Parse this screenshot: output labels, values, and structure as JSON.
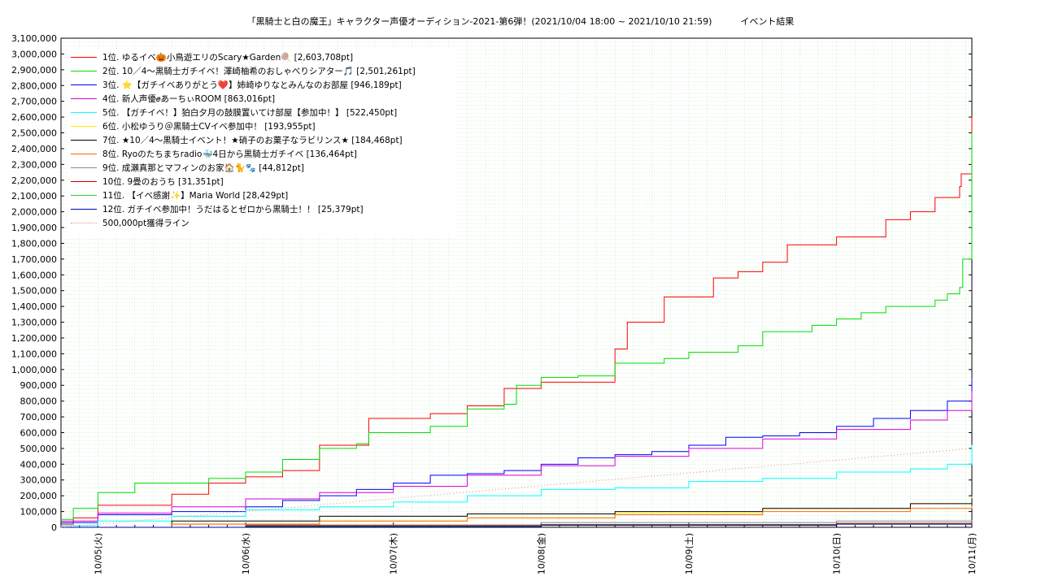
{
  "chart_data": {
    "type": "line",
    "title": "「黒騎士と白の魔王」キャラクター声優オーディション-2021-第6弾！(2021/10/04 18:00 ~ 2021/10/10 21:59)          イベント結果",
    "xlabel": "",
    "ylabel": "",
    "x_range": [
      "2021/10/04 18:00",
      "2021/10/10 21:59"
    ],
    "ylim": [
      0,
      3100000
    ],
    "grid": true,
    "legend_position": "top-left",
    "y_ticks": [
      "0",
      "100,000",
      "200,000",
      "300,000",
      "400,000",
      "500,000",
      "600,000",
      "700,000",
      "800,000",
      "900,000",
      "1,000,000",
      "1,100,000",
      "1,200,000",
      "1,300,000",
      "1,400,000",
      "1,500,000",
      "1,600,000",
      "1,700,000",
      "1,800,000",
      "1,900,000",
      "2,000,000",
      "2,100,000",
      "2,200,000",
      "2,300,000",
      "2,400,000",
      "2,500,000",
      "2,600,000",
      "2,700,000",
      "2,800,000",
      "2,900,000",
      "3,000,000",
      "3,100,000"
    ],
    "x_ticks": [
      "10/05(火)",
      "10/06(水)",
      "10/07(木)",
      "10/08(金)",
      "10/09(土)",
      "10/10(日)",
      "10/11(月)"
    ],
    "series": [
      {
        "name": "1位. ゆるイベ🎃小鳥遊エリのScary★Garden🍭 [2,603,708pt]",
        "color": "#ff0000",
        "x": [
          "2021/10/04 18:00",
          "2021/10/04 20:00",
          "2021/10/05 00:00",
          "2021/10/05 12:00",
          "2021/10/05 18:00",
          "2021/10/05 20:00",
          "2021/10/06 00:00",
          "2021/10/06 06:00",
          "2021/10/06 12:00",
          "2021/10/06 18:00",
          "2021/10/06 20:00",
          "2021/10/07 06:00",
          "2021/10/07 12:00",
          "2021/10/07 18:00",
          "2021/10/07 20:00",
          "2021/10/08 00:00",
          "2021/10/08 06:00",
          "2021/10/08 12:00",
          "2021/10/08 14:00",
          "2021/10/08 20:00",
          "2021/10/09 00:00",
          "2021/10/09 04:00",
          "2021/10/09 08:00",
          "2021/10/09 12:00",
          "2021/10/09 16:00",
          "2021/10/09 21:00",
          "2021/10/10 00:00",
          "2021/10/10 04:00",
          "2021/10/10 08:00",
          "2021/10/10 12:00",
          "2021/10/10 16:00",
          "2021/10/10 20:00",
          "2021/10/10 20:15",
          "2021/10/10 21:59"
        ],
        "y": [
          20000,
          60000,
          140000,
          210000,
          280000,
          280000,
          320000,
          360000,
          520000,
          520000,
          690000,
          720000,
          770000,
          880000,
          880000,
          920000,
          920000,
          1130000,
          1300000,
          1460000,
          1460000,
          1580000,
          1620000,
          1680000,
          1790000,
          1790000,
          1840000,
          1840000,
          1950000,
          2000000,
          2090000,
          2160000,
          2240000,
          2603708
        ]
      },
      {
        "name": "2位. 10／4〜黒騎士ガチイベ！澤崎柚希のおしゃべりシアター🎵 [2,501,261pt]",
        "color": "#00dd00",
        "x": [
          "2021/10/04 18:00",
          "2021/10/04 20:00",
          "2021/10/05 00:00",
          "2021/10/05 06:00",
          "2021/10/05 12:00",
          "2021/10/05 18:00",
          "2021/10/06 00:00",
          "2021/10/06 06:00",
          "2021/10/06 12:00",
          "2021/10/06 18:00",
          "2021/10/06 20:00",
          "2021/10/07 06:00",
          "2021/10/07 12:00",
          "2021/10/07 18:00",
          "2021/10/07 20:00",
          "2021/10/08 00:00",
          "2021/10/08 06:00",
          "2021/10/08 12:00",
          "2021/10/08 16:00",
          "2021/10/08 20:00",
          "2021/10/09 00:00",
          "2021/10/09 04:00",
          "2021/10/09 08:00",
          "2021/10/09 12:00",
          "2021/10/09 16:00",
          "2021/10/09 20:00",
          "2021/10/10 00:00",
          "2021/10/10 04:00",
          "2021/10/10 08:00",
          "2021/10/10 12:00",
          "2021/10/10 16:00",
          "2021/10/10 18:00",
          "2021/10/10 20:00",
          "2021/10/10 20:30",
          "2021/10/10 21:59"
        ],
        "y": [
          50000,
          120000,
          220000,
          280000,
          280000,
          310000,
          350000,
          430000,
          500000,
          530000,
          600000,
          640000,
          750000,
          780000,
          900000,
          950000,
          960000,
          1040000,
          1040000,
          1070000,
          1110000,
          1110000,
          1150000,
          1240000,
          1240000,
          1280000,
          1320000,
          1360000,
          1400000,
          1400000,
          1440000,
          1480000,
          1520000,
          1700000,
          2501261
        ]
      },
      {
        "name": "3位. ⭐【ガチイベありがとう❤️】姉崎ゆりなとみんなのお部屋 [946,189pt]",
        "color": "#0000ff",
        "x": [
          "2021/10/04 18:00",
          "2021/10/05 00:00",
          "2021/10/05 12:00",
          "2021/10/06 00:00",
          "2021/10/06 06:00",
          "2021/10/06 12:00",
          "2021/10/06 18:00",
          "2021/10/07 00:00",
          "2021/10/07 06:00",
          "2021/10/07 12:00",
          "2021/10/07 18:00",
          "2021/10/08 00:00",
          "2021/10/08 06:00",
          "2021/10/08 12:00",
          "2021/10/08 18:00",
          "2021/10/09 00:00",
          "2021/10/09 06:00",
          "2021/10/09 12:00",
          "2021/10/09 18:00",
          "2021/10/10 00:00",
          "2021/10/10 06:00",
          "2021/10/10 12:00",
          "2021/10/10 18:00",
          "2021/10/10 21:59"
        ],
        "y": [
          30000,
          80000,
          100000,
          130000,
          170000,
          200000,
          240000,
          280000,
          330000,
          340000,
          360000,
          400000,
          440000,
          460000,
          480000,
          520000,
          570000,
          580000,
          600000,
          640000,
          690000,
          740000,
          800000,
          946189
        ]
      },
      {
        "name": "4位. 新人声優𝑒あーちぃROOM [863,016pt]",
        "color": "#dd00dd",
        "x": [
          "2021/10/04 18:00",
          "2021/10/05 00:00",
          "2021/10/05 12:00",
          "2021/10/06 00:00",
          "2021/10/06 12:00",
          "2021/10/07 00:00",
          "2021/10/07 12:00",
          "2021/10/08 00:00",
          "2021/10/08 12:00",
          "2021/10/09 00:00",
          "2021/10/09 12:00",
          "2021/10/10 00:00",
          "2021/10/10 12:00",
          "2021/10/10 18:00",
          "2021/10/10 21:59"
        ],
        "y": [
          40000,
          90000,
          130000,
          180000,
          220000,
          260000,
          330000,
          390000,
          450000,
          500000,
          560000,
          620000,
          680000,
          740000,
          863016
        ]
      },
      {
        "name": "5位. 【ガチイベ！】狛白夕月の鼓膜置いてけ部屋【参加中！】 [522,450pt]",
        "color": "#00ffff",
        "x": [
          "2021/10/04 18:00",
          "2021/10/05 00:00",
          "2021/10/05 12:00",
          "2021/10/06 00:00",
          "2021/10/06 12:00",
          "2021/10/07 00:00",
          "2021/10/07 12:00",
          "2021/10/08 00:00",
          "2021/10/08 12:00",
          "2021/10/09 00:00",
          "2021/10/09 12:00",
          "2021/10/10 00:00",
          "2021/10/10 12:00",
          "2021/10/10 18:00",
          "2021/10/10 21:59"
        ],
        "y": [
          10000,
          40000,
          70000,
          110000,
          130000,
          160000,
          200000,
          240000,
          250000,
          290000,
          310000,
          350000,
          370000,
          400000,
          522450
        ]
      },
      {
        "name": "6位. 小松ゆうり＠黒騎士CVイベ参加中！ [193,955pt]",
        "color": "#ffee00",
        "x": [
          "2021/10/04 18:00",
          "2021/10/05 12:00",
          "2021/10/06 12:00",
          "2021/10/07 12:00",
          "2021/10/08 12:00",
          "2021/10/09 12:00",
          "2021/10/10 12:00",
          "2021/10/10 21:59"
        ],
        "y": [
          0,
          20000,
          40000,
          60000,
          90000,
          120000,
          150000,
          193955
        ]
      },
      {
        "name": "7位. ★10／4〜黒騎士イベント！★硝子のお菓子なラビリンス★ [184,468pt]",
        "color": "#000000",
        "x": [
          "2021/10/04 18:00",
          "2021/10/05 12:00",
          "2021/10/06 12:00",
          "2021/10/07 12:00",
          "2021/10/08 12:00",
          "2021/10/09 12:00",
          "2021/10/10 12:00",
          "2021/10/10 21:59"
        ],
        "y": [
          0,
          40000,
          70000,
          85000,
          100000,
          120000,
          150000,
          184468
        ]
      },
      {
        "name": "8位. Ryoのたちまちradio🐳4日から黒騎士ガチイベ [136,464pt]",
        "color": "#ff6600",
        "x": [
          "2021/10/04 18:00",
          "2021/10/05 12:00",
          "2021/10/06 12:00",
          "2021/10/07 12:00",
          "2021/10/08 12:00",
          "2021/10/09 12:00",
          "2021/10/10 12:00",
          "2021/10/10 21:59"
        ],
        "y": [
          0,
          20000,
          40000,
          60000,
          80000,
          100000,
          120000,
          136464
        ]
      },
      {
        "name": "9位. 成瀬真那とマフィンのお家🏠🐈🐾 [44,812pt]",
        "color": "#888888",
        "x": [
          "2021/10/04 18:00",
          "2021/10/06 00:00",
          "2021/10/08 00:00",
          "2021/10/10 00:00",
          "2021/10/10 21:59"
        ],
        "y": [
          0,
          15000,
          30000,
          40000,
          44812
        ]
      },
      {
        "name": "10位. 9畳のおうち [31,351pt]",
        "color": "#cc0000",
        "x": [
          "2021/10/04 18:00",
          "2021/10/06 00:00",
          "2021/10/08 00:00",
          "2021/10/10 00:00",
          "2021/10/10 21:59"
        ],
        "y": [
          0,
          10000,
          18000,
          26000,
          31351
        ]
      },
      {
        "name": "11位. 【イベ感謝✨】Maria World [28,429pt]",
        "color": "#33cc33",
        "x": [
          "2021/10/04 18:00",
          "2021/10/06 00:00",
          "2021/10/08 00:00",
          "2021/10/10 00:00",
          "2021/10/10 21:59"
        ],
        "y": [
          0,
          8000,
          15000,
          22000,
          28429
        ]
      },
      {
        "name": "12位. ガチイベ参加中！うだはるとゼロから黒騎士！！ [25,379pt]",
        "color": "#0000aa",
        "x": [
          "2021/10/04 18:00",
          "2021/10/06 00:00",
          "2021/10/08 00:00",
          "2021/10/10 00:00",
          "2021/10/10 21:59"
        ],
        "y": [
          0,
          6000,
          12000,
          20000,
          25379
        ]
      },
      {
        "name": "500,000pt獲得ライン",
        "color": "#ee8888",
        "dotted": true,
        "x": [
          "2021/10/04 18:00",
          "2021/10/10 21:59"
        ],
        "y": [
          0,
          500000
        ]
      }
    ],
    "annotations": [
      {
        "text": "",
        "value": 500000
      }
    ]
  }
}
